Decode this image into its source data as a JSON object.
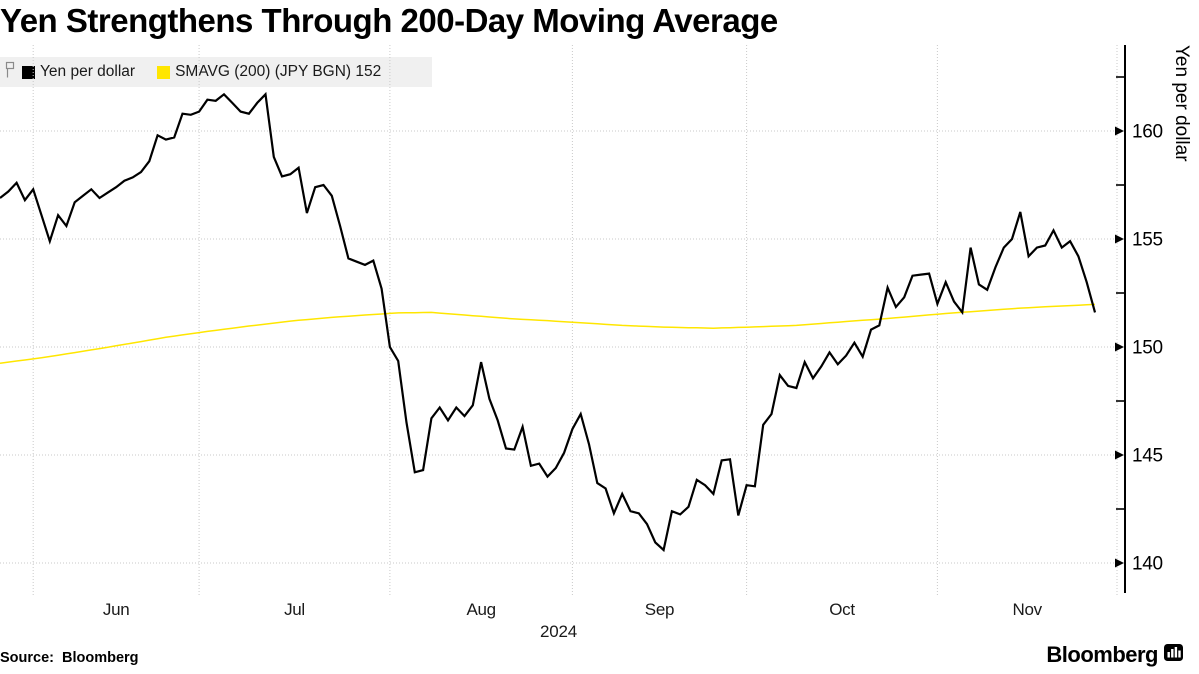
{
  "title": "Yen Strengthens Through 200-Day Moving Average",
  "legend": {
    "marker_icon": "flag-marker-icon",
    "items": [
      {
        "label": "Yen per dollar",
        "color": "#000000"
      },
      {
        "label": "SMAVG (200) (JPY BGN) 152",
        "color": "#ffe600"
      }
    ]
  },
  "source": {
    "label": "Source:",
    "value": "Bloomberg"
  },
  "logo": {
    "wordmark": "Bloomberg",
    "icon": "bar-chart-icon"
  },
  "colors": {
    "price_line": "#000000",
    "sma_line": "#ffe600",
    "gridline": "#c9c9c9",
    "axis": "#000000",
    "legend_bg": "#f0f0f0"
  },
  "chart_data": {
    "type": "line",
    "title": "Yen Strengthens Through 200-Day Moving Average",
    "ylabel": "Yen per dollar",
    "xlabel_year": "2024",
    "ylim": [
      138.5,
      164.0
    ],
    "yticks": [
      140,
      145,
      150,
      155,
      160
    ],
    "yticks_minor": [
      142.5,
      147.5,
      152.5,
      157.5,
      162.5
    ],
    "grid": "dotted",
    "legend_position": "top-left",
    "months": [
      {
        "label": "Jun",
        "boundary_index": 4
      },
      {
        "label": "Jul",
        "boundary_index": 24
      },
      {
        "label": "Aug",
        "boundary_index": 47
      },
      {
        "label": "Sep",
        "boundary_index": 69
      },
      {
        "label": "Oct",
        "boundary_index": 90
      },
      {
        "label": "Nov",
        "boundary_index": 113
      }
    ],
    "x_dates": [
      "2024-05-27",
      "2024-05-28",
      "2024-05-29",
      "2024-05-30",
      "2024-05-31",
      "2024-06-03",
      "2024-06-04",
      "2024-06-05",
      "2024-06-06",
      "2024-06-07",
      "2024-06-10",
      "2024-06-11",
      "2024-06-12",
      "2024-06-13",
      "2024-06-14",
      "2024-06-17",
      "2024-06-18",
      "2024-06-19",
      "2024-06-20",
      "2024-06-21",
      "2024-06-24",
      "2024-06-25",
      "2024-06-26",
      "2024-06-27",
      "2024-06-28",
      "2024-07-01",
      "2024-07-02",
      "2024-07-03",
      "2024-07-04",
      "2024-07-05",
      "2024-07-08",
      "2024-07-09",
      "2024-07-10",
      "2024-07-11",
      "2024-07-12",
      "2024-07-15",
      "2024-07-16",
      "2024-07-17",
      "2024-07-18",
      "2024-07-19",
      "2024-07-22",
      "2024-07-23",
      "2024-07-24",
      "2024-07-25",
      "2024-07-26",
      "2024-07-29",
      "2024-07-30",
      "2024-07-31",
      "2024-08-01",
      "2024-08-02",
      "2024-08-05",
      "2024-08-06",
      "2024-08-07",
      "2024-08-08",
      "2024-08-09",
      "2024-08-12",
      "2024-08-13",
      "2024-08-14",
      "2024-08-15",
      "2024-08-16",
      "2024-08-19",
      "2024-08-20",
      "2024-08-21",
      "2024-08-22",
      "2024-08-23",
      "2024-08-26",
      "2024-08-27",
      "2024-08-28",
      "2024-08-29",
      "2024-08-30",
      "2024-09-02",
      "2024-09-03",
      "2024-09-04",
      "2024-09-05",
      "2024-09-06",
      "2024-09-09",
      "2024-09-10",
      "2024-09-11",
      "2024-09-12",
      "2024-09-13",
      "2024-09-16",
      "2024-09-17",
      "2024-09-18",
      "2024-09-19",
      "2024-09-20",
      "2024-09-23",
      "2024-09-24",
      "2024-09-25",
      "2024-09-26",
      "2024-09-27",
      "2024-09-30",
      "2024-10-01",
      "2024-10-02",
      "2024-10-03",
      "2024-10-04",
      "2024-10-07",
      "2024-10-08",
      "2024-10-09",
      "2024-10-10",
      "2024-10-11",
      "2024-10-14",
      "2024-10-15",
      "2024-10-16",
      "2024-10-17",
      "2024-10-18",
      "2024-10-21",
      "2024-10-22",
      "2024-10-23",
      "2024-10-24",
      "2024-10-25",
      "2024-10-28",
      "2024-10-29",
      "2024-10-30",
      "2024-10-31",
      "2024-11-01",
      "2024-11-04",
      "2024-11-05",
      "2024-11-06",
      "2024-11-07",
      "2024-11-08",
      "2024-11-11",
      "2024-11-12",
      "2024-11-13",
      "2024-11-14",
      "2024-11-15",
      "2024-11-18",
      "2024-11-19",
      "2024-11-20",
      "2024-11-21",
      "2024-11-22",
      "2024-11-25",
      "2024-11-26",
      "2024-11-27"
    ],
    "series": [
      {
        "name": "Yen per dollar",
        "color": "#000000",
        "values": [
          156.9,
          157.2,
          157.6,
          156.8,
          157.3,
          156.1,
          154.9,
          156.1,
          155.6,
          156.7,
          157.0,
          157.3,
          156.9,
          157.15,
          157.4,
          157.7,
          157.85,
          158.1,
          158.6,
          159.8,
          159.6,
          159.7,
          160.8,
          160.75,
          160.9,
          161.45,
          161.4,
          161.7,
          161.3,
          160.9,
          160.8,
          161.3,
          161.7,
          158.8,
          157.9,
          158.0,
          158.3,
          156.2,
          157.4,
          157.5,
          157.0,
          155.6,
          154.1,
          153.95,
          153.8,
          154.0,
          152.7,
          150.0,
          149.35,
          146.5,
          144.2,
          144.3,
          146.7,
          147.2,
          146.6,
          147.2,
          146.8,
          147.3,
          149.3,
          147.6,
          146.6,
          145.3,
          145.25,
          146.3,
          144.5,
          144.6,
          144.0,
          144.4,
          145.1,
          146.2,
          146.9,
          145.5,
          143.7,
          143.45,
          142.3,
          143.2,
          142.4,
          142.3,
          141.8,
          140.95,
          140.6,
          142.4,
          142.25,
          142.6,
          143.85,
          143.6,
          143.2,
          144.75,
          144.8,
          142.2,
          143.6,
          143.55,
          146.4,
          146.9,
          148.7,
          148.2,
          148.1,
          149.3,
          148.55,
          149.1,
          149.75,
          149.2,
          149.6,
          150.2,
          149.55,
          150.8,
          151.0,
          152.75,
          151.85,
          152.3,
          153.3,
          153.35,
          153.4,
          152.0,
          153.0,
          152.1,
          151.6,
          154.6,
          152.9,
          152.65,
          153.7,
          154.6,
          155.0,
          156.25,
          154.2,
          154.6,
          154.7,
          155.4,
          154.6,
          154.9,
          154.2,
          153.0,
          151.6
        ]
      },
      {
        "name": "SMAVG (200) (JPY BGN) 152",
        "color": "#ffe600",
        "last_value": 152,
        "anchors": [
          [
            0,
            149.25
          ],
          [
            5,
            149.5
          ],
          [
            10,
            149.8
          ],
          [
            15,
            150.12
          ],
          [
            20,
            150.45
          ],
          [
            25,
            150.72
          ],
          [
            30,
            150.97
          ],
          [
            35,
            151.2
          ],
          [
            40,
            151.37
          ],
          [
            44,
            151.48
          ],
          [
            48,
            151.58
          ],
          [
            52,
            151.6
          ],
          [
            57,
            151.45
          ],
          [
            62,
            151.3
          ],
          [
            66,
            151.22
          ],
          [
            70,
            151.12
          ],
          [
            75,
            151.0
          ],
          [
            80,
            150.92
          ],
          [
            86,
            150.87
          ],
          [
            91,
            150.93
          ],
          [
            96,
            151.0
          ],
          [
            101,
            151.15
          ],
          [
            107,
            151.32
          ],
          [
            114,
            151.55
          ],
          [
            118,
            151.66
          ],
          [
            123,
            151.8
          ],
          [
            127,
            151.88
          ],
          [
            132,
            151.97
          ]
        ]
      }
    ]
  }
}
